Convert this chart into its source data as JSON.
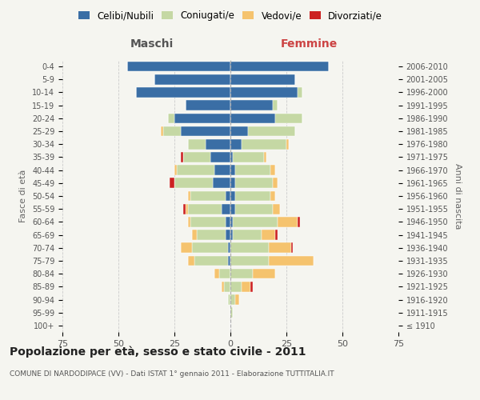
{
  "age_groups": [
    "100+",
    "95-99",
    "90-94",
    "85-89",
    "80-84",
    "75-79",
    "70-74",
    "65-69",
    "60-64",
    "55-59",
    "50-54",
    "45-49",
    "40-44",
    "35-39",
    "30-34",
    "25-29",
    "20-24",
    "15-19",
    "10-14",
    "5-9",
    "0-4"
  ],
  "birth_years": [
    "≤ 1910",
    "1911-1915",
    "1916-1920",
    "1921-1925",
    "1926-1930",
    "1931-1935",
    "1936-1940",
    "1941-1945",
    "1946-1950",
    "1951-1955",
    "1956-1960",
    "1961-1965",
    "1966-1970",
    "1971-1975",
    "1976-1980",
    "1981-1985",
    "1986-1990",
    "1991-1995",
    "1996-2000",
    "2001-2005",
    "2006-2010"
  ],
  "maschi": {
    "celibi": [
      0,
      0,
      0,
      0,
      0,
      1,
      1,
      2,
      2,
      4,
      2,
      8,
      7,
      9,
      11,
      22,
      25,
      20,
      42,
      34,
      46
    ],
    "coniugati": [
      0,
      0,
      1,
      3,
      5,
      15,
      16,
      13,
      16,
      15,
      16,
      17,
      17,
      12,
      8,
      8,
      3,
      0,
      0,
      0,
      0
    ],
    "vedovi": [
      0,
      0,
      0,
      1,
      2,
      3,
      5,
      2,
      1,
      1,
      1,
      0,
      1,
      0,
      0,
      1,
      0,
      0,
      0,
      0,
      0
    ],
    "divorziati": [
      0,
      0,
      0,
      0,
      0,
      0,
      0,
      0,
      0,
      1,
      0,
      2,
      0,
      1,
      0,
      0,
      0,
      0,
      0,
      0,
      0
    ]
  },
  "femmine": {
    "nubili": [
      0,
      0,
      0,
      0,
      0,
      0,
      0,
      1,
      1,
      2,
      2,
      2,
      2,
      1,
      5,
      8,
      20,
      19,
      30,
      29,
      44
    ],
    "coniugate": [
      0,
      1,
      2,
      5,
      10,
      17,
      17,
      13,
      20,
      17,
      16,
      17,
      16,
      14,
      20,
      21,
      12,
      2,
      2,
      0,
      0
    ],
    "vedove": [
      0,
      0,
      2,
      4,
      10,
      20,
      10,
      6,
      9,
      3,
      2,
      2,
      2,
      1,
      1,
      0,
      0,
      0,
      0,
      0,
      0
    ],
    "divorziate": [
      0,
      0,
      0,
      1,
      0,
      0,
      1,
      1,
      1,
      0,
      0,
      0,
      0,
      0,
      0,
      0,
      0,
      0,
      0,
      0,
      0
    ]
  },
  "colors": {
    "celibi": "#3A6EA5",
    "coniugati": "#C5D8A4",
    "vedovi": "#F5C36E",
    "divorziati": "#CC2222"
  },
  "xlim": 75,
  "title": "Popolazione per età, sesso e stato civile - 2011",
  "subtitle": "COMUNE DI NARDODIPACE (VV) - Dati ISTAT 1° gennaio 2011 - Elaborazione TUTTITALIA.IT",
  "ylabel": "Fasce di età",
  "ylabel_right": "Anni di nascita",
  "xlabel_maschi": "Maschi",
  "xlabel_femmine": "Femmine",
  "legend_labels": [
    "Celibi/Nubili",
    "Coniugati/e",
    "Vedovi/e",
    "Divorziati/e"
  ],
  "bg_color": "#f5f5f0"
}
